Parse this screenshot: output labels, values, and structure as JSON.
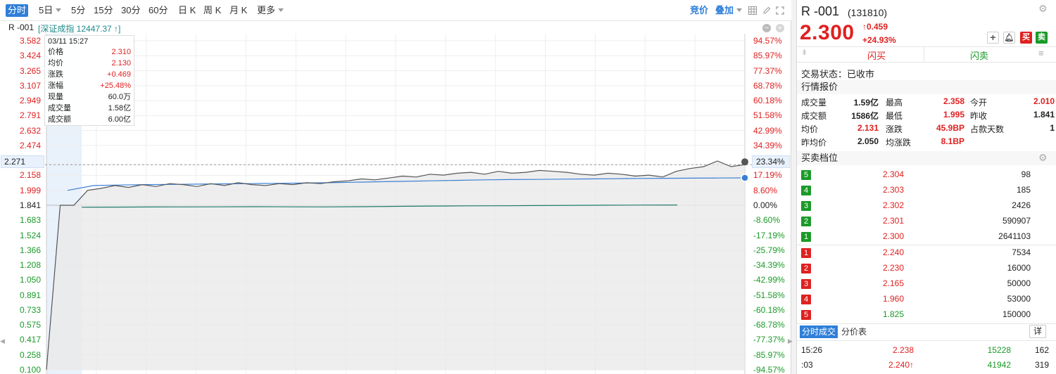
{
  "toolbar": {
    "periods": [
      "分时",
      "5日",
      "5分",
      "15分",
      "30分",
      "60分",
      "日 K",
      "周 K",
      "月 K",
      "更多"
    ],
    "bid_label": "竞价",
    "overlay_label": "叠加"
  },
  "info": {
    "symbol": "R -001",
    "index_text": "[深证成指 12447.37 ↑]"
  },
  "y_axis": {
    "left": [
      "3.582",
      "3.424",
      "3.265",
      "3.107",
      "2.949",
      "2.791",
      "2.632",
      "2.474",
      "2.158",
      "1.999",
      "1.841",
      "1.683",
      "1.524",
      "1.366",
      "1.208",
      "1.050",
      "0.891",
      "0.733",
      "0.575",
      "0.417",
      "0.258",
      "0.100"
    ],
    "right": [
      "94.57%",
      "85.97%",
      "77.37%",
      "68.78%",
      "60.18%",
      "51.58%",
      "42.99%",
      "34.39%",
      "17.19%",
      "8.60%",
      "0.00%",
      "-8.60%",
      "-17.19%",
      "-25.79%",
      "-34.39%",
      "-42.99%",
      "-51.58%",
      "-60.18%",
      "-68.78%",
      "-77.37%",
      "-85.97%",
      "-94.57%"
    ],
    "cursor_price": "2.271",
    "cursor_pct": "23.34%"
  },
  "tooltip": {
    "time": "03/11 15:27",
    "rows": [
      {
        "k": "价格",
        "v": "2.310"
      },
      {
        "k": "均价",
        "v": "2.130"
      },
      {
        "k": "涨跌",
        "v": "+0.469"
      },
      {
        "k": "涨幅",
        "v": "+25.48%"
      },
      {
        "k": "现量",
        "v": "60.0万"
      },
      {
        "k": "成交量",
        "v": "1.58亿"
      },
      {
        "k": "成交额",
        "v": "6.00亿"
      }
    ]
  },
  "chart_data": {
    "type": "line",
    "title": "",
    "prev_close": 1.841,
    "ylim": [
      0.1,
      3.582
    ],
    "series": [
      {
        "values": [
          0.1,
          1.841,
          1.841,
          1.999,
          2.02,
          2.05,
          2.03,
          2.06,
          2.04,
          2.07,
          2.06,
          2.04,
          2.07,
          2.05,
          2.08,
          2.06,
          2.05,
          2.07,
          2.06,
          2.08,
          2.07,
          2.09,
          2.1,
          2.12,
          2.11,
          2.13,
          2.15,
          2.14,
          2.17,
          2.16,
          2.18,
          2.19,
          2.17,
          2.2,
          2.18,
          2.19,
          2.21,
          2.2,
          2.19,
          2.17,
          2.16,
          2.18,
          2.17,
          2.15,
          2.16,
          2.14,
          2.2,
          2.23,
          2.25,
          2.31,
          2.25,
          2.271
        ]
      },
      {
        "values": [
          1.999,
          2.05,
          2.055,
          2.06,
          2.062,
          2.065,
          2.068,
          2.07,
          2.073,
          2.076,
          2.08,
          2.085,
          2.09,
          2.095,
          2.1,
          2.105,
          2.11,
          2.113,
          2.115,
          2.118,
          2.12,
          2.122,
          2.125,
          2.127,
          2.128,
          2.13,
          2.131
        ]
      },
      {
        "values": [
          1.82,
          1.822,
          1.823,
          1.824,
          1.825,
          1.826,
          1.825,
          1.824,
          1.826,
          1.83,
          1.833,
          1.835,
          1.836,
          1.838,
          1.84,
          1.842,
          1.843,
          1.844
        ]
      }
    ]
  },
  "quote": {
    "symbol": "R -001",
    "code": "(131810)",
    "price": "2.300",
    "change": "0.459",
    "change_pct": "+24.93%",
    "flash_buy": "闪买",
    "flash_sell": "闪卖",
    "buy_btn": "买",
    "sell_btn": "卖",
    "status_label": "交易状态：",
    "status_value": "已收市",
    "market_header": "行情报价",
    "stats": [
      {
        "k": "成交量",
        "v": "1.59亿",
        "c": "#222"
      },
      {
        "k": "最高",
        "v": "2.358",
        "c": "#e02020"
      },
      {
        "k": "今开",
        "v": "2.010",
        "c": "#e02020"
      },
      {
        "k": "成交额",
        "v": "1586亿",
        "c": "#222"
      },
      {
        "k": "最低",
        "v": "1.995",
        "c": "#e02020"
      },
      {
        "k": "昨收",
        "v": "1.841",
        "c": "#222"
      },
      {
        "k": "均价",
        "v": "2.131",
        "c": "#e02020"
      },
      {
        "k": "涨跌",
        "v": "45.9BP",
        "c": "#e02020"
      },
      {
        "k": "占款天数",
        "v": "1",
        "c": "#222"
      },
      {
        "k": "昨均价",
        "v": "2.050",
        "c": "#222"
      },
      {
        "k": "均涨跌",
        "v": "8.1BP",
        "c": "#e02020"
      }
    ],
    "orderbook_header": "买卖档位",
    "asks": [
      {
        "n": "5",
        "p": "2.304",
        "v": "98"
      },
      {
        "n": "4",
        "p": "2.303",
        "v": "185"
      },
      {
        "n": "3",
        "p": "2.302",
        "v": "2426"
      },
      {
        "n": "2",
        "p": "2.301",
        "v": "590907"
      },
      {
        "n": "1",
        "p": "2.300",
        "v": "2641103"
      }
    ],
    "bids": [
      {
        "n": "1",
        "p": "2.240",
        "v": "7534",
        "c": "#e02020"
      },
      {
        "n": "2",
        "p": "2.230",
        "v": "16000",
        "c": "#e02020"
      },
      {
        "n": "3",
        "p": "2.165",
        "v": "50000",
        "c": "#e02020"
      },
      {
        "n": "4",
        "p": "1.960",
        "v": "53000",
        "c": "#e02020"
      },
      {
        "n": "5",
        "p": "1.825",
        "v": "150000",
        "c": "#1a9a28"
      }
    ],
    "tabs": [
      "分时成交",
      "分价表"
    ],
    "detail_btn": "详",
    "ticks": [
      {
        "time": "15:26",
        "price": "2.238",
        "vol": "15228",
        "n": "162"
      },
      {
        "time": ":03",
        "price": "2.240↑",
        "vol": "41942",
        "n": "319"
      }
    ]
  },
  "colors": {
    "accent": "#2f7fd8",
    "up": "#e02020",
    "down": "#1a9a28",
    "price_line": "#555555",
    "avg_line": "#3b7fd4",
    "prev_line": "#1f7a6a"
  }
}
